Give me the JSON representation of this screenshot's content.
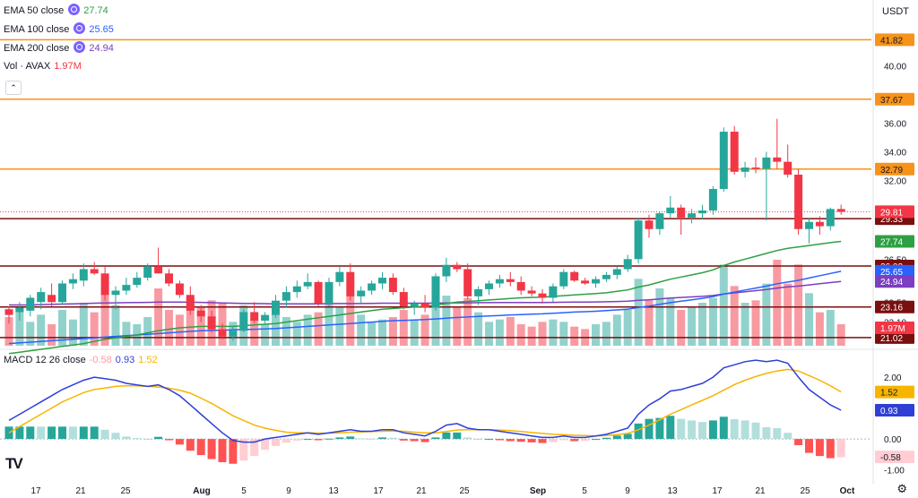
{
  "header": {
    "currency": "USDT",
    "collapse_icon": "chevron-up-icon"
  },
  "legend": {
    "ema50": {
      "label": "EMA 50 close",
      "value": "27.74",
      "color": "#2ea043"
    },
    "ema100": {
      "label": "EMA 100 close",
      "value": "25.65",
      "color": "#2962ff"
    },
    "ema200": {
      "label": "EMA 200 close",
      "value": "24.94",
      "color": "#7b3fbf"
    },
    "vol": {
      "label": "Vol · AVAX",
      "value": "1.97M",
      "color": "#f23645"
    },
    "macd": {
      "label": "MACD 12 26 close",
      "hist": "-0.58",
      "macd": "0.93",
      "signal": "1.52"
    }
  },
  "logo": "TV",
  "settings_icon": "gear-icon",
  "chart_data": {
    "type": "candlestick",
    "price_axis": {
      "range": [
        20.2,
        44.6
      ],
      "ticks": [
        "40.00",
        "36.00",
        "34.00",
        "32.00",
        "26.50",
        "23.50",
        "22.10"
      ]
    },
    "x_ticks": [
      "17",
      "21",
      "25",
      "Aug",
      "5",
      "9",
      "13",
      "17",
      "21",
      "25",
      "Sep",
      "5",
      "9",
      "13",
      "17",
      "21",
      "25",
      "Oct"
    ],
    "horizontal_levels": [
      {
        "value": 41.82,
        "label": "41.82",
        "color": "#f7931a"
      },
      {
        "value": 37.67,
        "label": "37.67",
        "color": "#f7931a"
      },
      {
        "value": 32.79,
        "label": "32.79",
        "color": "#f7931a"
      },
      {
        "value": 29.33,
        "label": "29.33",
        "color": "#7a0f0f"
      },
      {
        "value": 26.02,
        "label": "26.02",
        "color": "#7a0f0f"
      },
      {
        "value": 23.16,
        "label": "23.16",
        "color": "#7a0f0f"
      },
      {
        "value": 21.02,
        "label": "21.02",
        "color": "#7a0f0f"
      }
    ],
    "current_price": {
      "value": 29.81,
      "label": "29.81",
      "color": "#f23645"
    },
    "ema_labels": [
      {
        "value": 27.74,
        "label": "27.74",
        "color": "#2ea043"
      },
      {
        "value": 25.65,
        "label": "25.65",
        "color": "#2962ff"
      },
      {
        "value": 24.94,
        "label": "24.94",
        "color": "#7b3fbf"
      }
    ],
    "volume_label": {
      "label": "1.97M",
      "color": "#f23645"
    },
    "candles": [
      [
        23.0,
        23.2,
        22.0,
        22.6
      ],
      [
        22.8,
        23.5,
        22.2,
        23.1
      ],
      [
        22.9,
        24.0,
        22.5,
        23.8
      ],
      [
        23.5,
        24.5,
        23.0,
        24.2
      ],
      [
        24.0,
        24.8,
        23.2,
        23.5
      ],
      [
        23.5,
        25.0,
        23.3,
        24.8
      ],
      [
        24.8,
        25.5,
        24.4,
        25.1
      ],
      [
        25.0,
        26.2,
        24.6,
        25.8
      ],
      [
        25.8,
        26.3,
        25.4,
        25.5
      ],
      [
        25.5,
        26.0,
        23.6,
        24.0
      ],
      [
        24.0,
        24.6,
        23.0,
        24.3
      ],
      [
        24.3,
        25.2,
        24.0,
        24.7
      ],
      [
        24.7,
        25.6,
        24.5,
        25.2
      ],
      [
        25.2,
        26.2,
        25.0,
        26.0
      ],
      [
        26.0,
        27.3,
        25.5,
        25.5
      ],
      [
        25.5,
        25.8,
        24.6,
        24.8
      ],
      [
        24.8,
        25.0,
        23.8,
        24.0
      ],
      [
        24.0,
        24.6,
        22.6,
        22.9
      ],
      [
        22.9,
        23.3,
        22.1,
        22.5
      ],
      [
        22.5,
        22.9,
        21.4,
        21.6
      ],
      [
        21.6,
        22.0,
        20.9,
        21.1
      ],
      [
        21.1,
        21.8,
        20.8,
        21.5
      ],
      [
        21.5,
        23.0,
        21.4,
        22.8
      ],
      [
        22.8,
        23.5,
        22.0,
        22.2
      ],
      [
        22.2,
        22.8,
        22.0,
        22.6
      ],
      [
        22.6,
        24.0,
        22.4,
        23.6
      ],
      [
        23.6,
        24.6,
        23.1,
        24.2
      ],
      [
        24.2,
        25.0,
        23.8,
        24.6
      ],
      [
        24.6,
        25.5,
        24.4,
        24.9
      ],
      [
        24.9,
        25.0,
        23.2,
        23.4
      ],
      [
        23.4,
        25.2,
        23.2,
        24.9
      ],
      [
        24.9,
        26.0,
        24.6,
        25.6
      ],
      [
        25.6,
        26.2,
        23.6,
        23.9
      ],
      [
        23.9,
        24.6,
        23.4,
        24.3
      ],
      [
        24.3,
        25.0,
        24.0,
        24.8
      ],
      [
        24.8,
        25.6,
        24.4,
        25.2
      ],
      [
        25.2,
        25.5,
        24.0,
        24.2
      ],
      [
        24.2,
        24.5,
        23.0,
        23.2
      ],
      [
        23.2,
        23.6,
        22.6,
        23.4
      ],
      [
        23.4,
        24.0,
        22.8,
        23.1
      ],
      [
        23.1,
        25.5,
        22.9,
        25.3
      ],
      [
        25.3,
        26.6,
        24.9,
        26.1
      ],
      [
        26.1,
        26.3,
        25.6,
        25.8
      ],
      [
        25.8,
        26.2,
        23.7,
        23.9
      ],
      [
        23.9,
        24.6,
        23.3,
        24.4
      ],
      [
        24.4,
        25.0,
        24.0,
        24.8
      ],
      [
        24.8,
        25.4,
        24.5,
        25.1
      ],
      [
        25.1,
        25.6,
        24.6,
        24.9
      ],
      [
        24.9,
        25.3,
        24.0,
        24.3
      ],
      [
        24.3,
        24.6,
        23.9,
        24.1
      ],
      [
        24.1,
        24.4,
        23.4,
        23.8
      ],
      [
        23.8,
        24.8,
        23.5,
        24.6
      ],
      [
        24.6,
        25.8,
        24.4,
        25.6
      ],
      [
        25.6,
        25.7,
        24.9,
        25.0
      ],
      [
        25.0,
        25.2,
        24.7,
        24.8
      ],
      [
        24.8,
        25.3,
        24.5,
        25.1
      ],
      [
        25.1,
        25.6,
        24.9,
        25.4
      ],
      [
        25.4,
        26.0,
        25.1,
        25.8
      ],
      [
        25.8,
        26.8,
        25.6,
        26.5
      ],
      [
        26.5,
        29.4,
        26.2,
        29.2
      ],
      [
        29.2,
        29.6,
        28.0,
        28.6
      ],
      [
        28.6,
        29.8,
        28.2,
        29.7
      ],
      [
        29.7,
        30.9,
        29.4,
        30.1
      ],
      [
        30.1,
        30.3,
        28.2,
        29.4
      ],
      [
        29.4,
        30.0,
        29.0,
        29.7
      ],
      [
        29.7,
        30.3,
        29.3,
        29.9
      ],
      [
        29.9,
        31.6,
        29.6,
        31.4
      ],
      [
        31.4,
        35.7,
        31.2,
        35.4
      ],
      [
        35.4,
        35.8,
        32.4,
        32.6
      ],
      [
        32.6,
        33.3,
        32.2,
        32.9
      ],
      [
        32.9,
        33.6,
        32.5,
        32.8
      ],
      [
        32.8,
        34.0,
        29.2,
        33.6
      ],
      [
        33.6,
        36.3,
        32.8,
        33.3
      ],
      [
        33.3,
        34.5,
        32.2,
        32.4
      ],
      [
        32.4,
        32.8,
        28.2,
        28.6
      ],
      [
        28.6,
        29.4,
        27.6,
        29.1
      ],
      [
        29.1,
        29.5,
        28.2,
        28.8
      ],
      [
        28.8,
        30.1,
        28.5,
        30.0
      ],
      [
        30.0,
        30.3,
        29.6,
        29.81
      ]
    ],
    "volume": [
      1.2,
      1.6,
      1.0,
      1.3,
      0.9,
      1.5,
      1.1,
      1.8,
      1.4,
      2.2,
      1.7,
      1.0,
      0.9,
      1.2,
      2.4,
      1.5,
      1.3,
      2.0,
      1.6,
      1.9,
      1.8,
      1.0,
      1.7,
      1.1,
      0.9,
      1.5,
      1.2,
      1.0,
      1.3,
      1.4,
      2.0,
      1.6,
      2.1,
      1.3,
      1.0,
      1.1,
      1.2,
      1.5,
      1.1,
      1.3,
      1.9,
      2.1,
      1.6,
      2.0,
      1.4,
      1.0,
      1.1,
      1.2,
      0.9,
      0.8,
      1.0,
      1.1,
      1.0,
      0.8,
      0.7,
      0.9,
      1.0,
      1.3,
      1.5,
      2.8,
      1.9,
      2.4,
      2.0,
      1.5,
      1.6,
      1.8,
      2.0,
      3.4,
      2.5,
      1.8,
      1.9,
      2.6,
      3.6,
      2.6,
      3.4,
      2.2,
      1.4,
      1.5,
      0.9
    ],
    "volume_scale_max": 4.5,
    "ema50": [
      19.9,
      20.0,
      20.1,
      20.2,
      20.3,
      20.4,
      20.5,
      20.6,
      20.75,
      20.9,
      21.0,
      21.1,
      21.2,
      21.35,
      21.5,
      21.6,
      21.7,
      21.75,
      21.8,
      21.8,
      21.8,
      21.8,
      21.85,
      21.9,
      21.95,
      22.0,
      22.1,
      22.2,
      22.3,
      22.4,
      22.5,
      22.6,
      22.7,
      22.8,
      22.9,
      23.0,
      23.05,
      23.1,
      23.15,
      23.2,
      23.3,
      23.4,
      23.5,
      23.55,
      23.6,
      23.65,
      23.7,
      23.75,
      23.8,
      23.82,
      23.85,
      23.9,
      23.95,
      24.0,
      24.05,
      24.1,
      24.15,
      24.25,
      24.35,
      24.55,
      24.7,
      24.9,
      25.1,
      25.25,
      25.4,
      25.55,
      25.75,
      26.05,
      26.3,
      26.5,
      26.7,
      26.9,
      27.1,
      27.25,
      27.35,
      27.45,
      27.55,
      27.65,
      27.74
    ],
    "ema100": [
      20.6,
      20.65,
      20.7,
      20.75,
      20.8,
      20.85,
      20.9,
      20.95,
      21.0,
      21.05,
      21.1,
      21.15,
      21.2,
      21.25,
      21.3,
      21.35,
      21.4,
      21.45,
      21.5,
      21.52,
      21.54,
      21.56,
      21.58,
      21.6,
      21.62,
      21.65,
      21.7,
      21.75,
      21.8,
      21.85,
      21.9,
      21.95,
      22.0,
      22.05,
      22.1,
      22.15,
      22.2,
      22.22,
      22.25,
      22.28,
      22.32,
      22.38,
      22.42,
      22.46,
      22.5,
      22.53,
      22.56,
      22.6,
      22.62,
      22.65,
      22.68,
      22.72,
      22.76,
      22.8,
      22.83,
      22.86,
      22.9,
      22.95,
      23.0,
      23.12,
      23.22,
      23.34,
      23.46,
      23.56,
      23.66,
      23.76,
      23.88,
      24.06,
      24.2,
      24.34,
      24.48,
      24.62,
      24.78,
      24.9,
      25.02,
      25.18,
      25.34,
      25.5,
      25.65
    ],
    "ema200": [
      23.3,
      23.3,
      23.3,
      23.32,
      23.34,
      23.36,
      23.38,
      23.4,
      23.42,
      23.44,
      23.45,
      23.46,
      23.47,
      23.48,
      23.5,
      23.5,
      23.5,
      23.49,
      23.48,
      23.46,
      23.44,
      23.42,
      23.41,
      23.4,
      23.39,
      23.38,
      23.38,
      23.38,
      23.38,
      23.38,
      23.39,
      23.4,
      23.4,
      23.4,
      23.41,
      23.42,
      23.42,
      23.42,
      23.42,
      23.42,
      23.43,
      23.44,
      23.45,
      23.45,
      23.46,
      23.46,
      23.47,
      23.47,
      23.47,
      23.47,
      23.47,
      23.48,
      23.49,
      23.5,
      23.5,
      23.51,
      23.52,
      23.54,
      23.56,
      23.62,
      23.66,
      23.72,
      23.78,
      23.82,
      23.86,
      23.9,
      23.96,
      24.06,
      24.14,
      24.22,
      24.3,
      24.38,
      24.48,
      24.56,
      24.62,
      24.7,
      24.78,
      24.86,
      24.94
    ],
    "macd_pane": {
      "range": [
        -1.3,
        2.9
      ],
      "ticks": [
        "2.00",
        "1.00",
        "0.00",
        "-1.00"
      ],
      "levels": [
        {
          "value": 1.52,
          "label": "1.52",
          "color": "#f7b500"
        },
        {
          "value": 0.93,
          "label": "0.93",
          "color": "#2f3fd6"
        },
        {
          "value": -0.58,
          "label": "-0.58",
          "color": "#ffcdd2"
        }
      ],
      "macd": [
        0.6,
        0.8,
        1.0,
        1.2,
        1.4,
        1.6,
        1.75,
        1.9,
        2.0,
        1.95,
        1.9,
        1.8,
        1.75,
        1.7,
        1.75,
        1.6,
        1.4,
        1.1,
        0.8,
        0.5,
        0.2,
        -0.05,
        -0.1,
        -0.1,
        0.0,
        0.05,
        0.1,
        0.15,
        0.2,
        0.15,
        0.2,
        0.25,
        0.3,
        0.25,
        0.25,
        0.3,
        0.3,
        0.2,
        0.15,
        0.1,
        0.25,
        0.45,
        0.5,
        0.35,
        0.3,
        0.3,
        0.25,
        0.2,
        0.15,
        0.1,
        0.05,
        0.05,
        0.1,
        0.05,
        0.05,
        0.1,
        0.15,
        0.25,
        0.35,
        0.8,
        1.1,
        1.3,
        1.55,
        1.6,
        1.7,
        1.8,
        2.0,
        2.3,
        2.4,
        2.5,
        2.55,
        2.5,
        2.55,
        2.45,
        2.0,
        1.6,
        1.35,
        1.1,
        0.93
      ],
      "signal": [
        0.2,
        0.4,
        0.6,
        0.8,
        1.0,
        1.2,
        1.35,
        1.5,
        1.6,
        1.65,
        1.7,
        1.72,
        1.72,
        1.7,
        1.68,
        1.64,
        1.58,
        1.48,
        1.32,
        1.15,
        0.95,
        0.75,
        0.6,
        0.45,
        0.35,
        0.28,
        0.22,
        0.2,
        0.2,
        0.19,
        0.19,
        0.2,
        0.22,
        0.23,
        0.24,
        0.25,
        0.26,
        0.25,
        0.22,
        0.2,
        0.2,
        0.24,
        0.29,
        0.3,
        0.3,
        0.3,
        0.29,
        0.27,
        0.24,
        0.21,
        0.18,
        0.15,
        0.14,
        0.12,
        0.11,
        0.1,
        0.11,
        0.14,
        0.18,
        0.3,
        0.45,
        0.62,
        0.8,
        0.95,
        1.1,
        1.25,
        1.4,
        1.58,
        1.76,
        1.9,
        2.02,
        2.12,
        2.2,
        2.25,
        2.2,
        2.05,
        1.9,
        1.72,
        1.52
      ]
    }
  }
}
